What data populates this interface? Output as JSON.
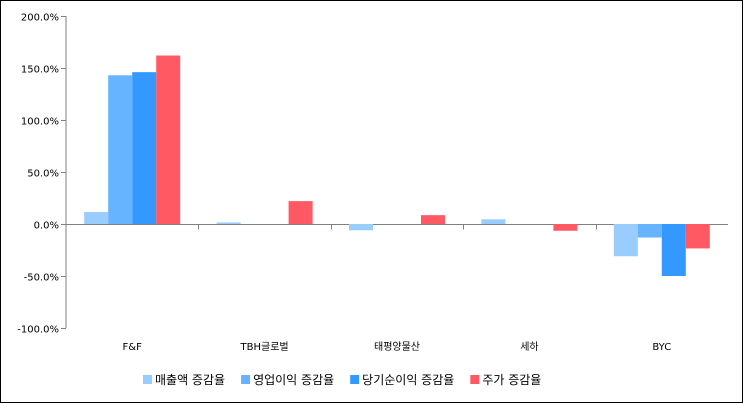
{
  "chart_data": {
    "type": "bar",
    "title": "",
    "xlabel": "",
    "ylabel": "",
    "ylim": [
      -100,
      200
    ],
    "yticks": [
      200,
      150,
      100,
      50,
      0,
      -50,
      -100
    ],
    "ytick_labels": [
      "200.0%",
      "150.0%",
      "100.0%",
      "50.0%",
      "0.0%",
      "-50.0%",
      "-100.0%"
    ],
    "categories": [
      "F&F",
      "TBH글로벌",
      "태평양물산",
      "세하",
      "BYC"
    ],
    "series": [
      {
        "name": "매출액 증감율",
        "color": "#99ccff",
        "values": [
          11.5,
          1.5,
          -6.0,
          4.5,
          -31.0
        ]
      },
      {
        "name": "영업이익 증감율",
        "color": "#66b3ff",
        "values": [
          143.0,
          0,
          0,
          0,
          -13.0
        ]
      },
      {
        "name": "당기순이익 증감율",
        "color": "#3399ff",
        "values": [
          146.0,
          0,
          0,
          0,
          -50.0
        ]
      },
      {
        "name": "주가 증감율",
        "color": "#ff5a64",
        "values": [
          162.0,
          22.0,
          8.5,
          -6.5,
          -23.5
        ]
      }
    ],
    "legend_position": "bottom",
    "grid": false
  }
}
